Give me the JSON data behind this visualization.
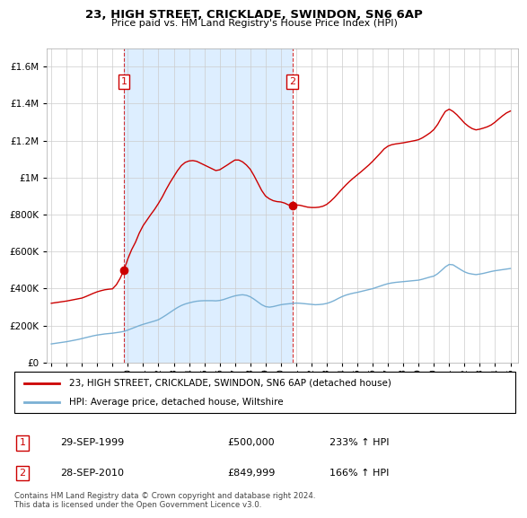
{
  "title": "23, HIGH STREET, CRICKLADE, SWINDON, SN6 6AP",
  "subtitle": "Price paid vs. HM Land Registry's House Price Index (HPI)",
  "footer": "Contains HM Land Registry data © Crown copyright and database right 2024.\nThis data is licensed under the Open Government Licence v3.0.",
  "legend_line1": "23, HIGH STREET, CRICKLADE, SWINDON, SN6 6AP (detached house)",
  "legend_line2": "HPI: Average price, detached house, Wiltshire",
  "sale1_label": "1",
  "sale1_date": "29-SEP-1999",
  "sale1_price": "£500,000",
  "sale1_hpi": "233% ↑ HPI",
  "sale2_label": "2",
  "sale2_date": "28-SEP-2010",
  "sale2_price": "£849,999",
  "sale2_hpi": "166% ↑ HPI",
  "red_color": "#cc0000",
  "blue_color": "#7ab0d4",
  "shade_color": "#ddeeff",
  "background_color": "#ffffff",
  "grid_color": "#cccccc",
  "ylim": [
    0,
    1700000
  ],
  "xlim_min": 1994.7,
  "xlim_max": 2025.5,
  "sale1_year": 1999.75,
  "sale1_value": 500000,
  "sale2_year": 2010.75,
  "sale2_value": 849999,
  "hpi_years": [
    1995,
    1995.25,
    1995.5,
    1995.75,
    1996,
    1996.25,
    1996.5,
    1996.75,
    1997,
    1997.25,
    1997.5,
    1997.75,
    1998,
    1998.25,
    1998.5,
    1998.75,
    1999,
    1999.25,
    1999.5,
    1999.75,
    2000,
    2000.25,
    2000.5,
    2000.75,
    2001,
    2001.25,
    2001.5,
    2001.75,
    2002,
    2002.25,
    2002.5,
    2002.75,
    2003,
    2003.25,
    2003.5,
    2003.75,
    2004,
    2004.25,
    2004.5,
    2004.75,
    2005,
    2005.25,
    2005.5,
    2005.75,
    2006,
    2006.25,
    2006.5,
    2006.75,
    2007,
    2007.25,
    2007.5,
    2007.75,
    2008,
    2008.25,
    2008.5,
    2008.75,
    2009,
    2009.25,
    2009.5,
    2009.75,
    2010,
    2010.25,
    2010.5,
    2010.75,
    2011,
    2011.25,
    2011.5,
    2011.75,
    2012,
    2012.25,
    2012.5,
    2012.75,
    2013,
    2013.25,
    2013.5,
    2013.75,
    2014,
    2014.25,
    2014.5,
    2014.75,
    2015,
    2015.25,
    2015.5,
    2015.75,
    2016,
    2016.25,
    2016.5,
    2016.75,
    2017,
    2017.25,
    2017.5,
    2017.75,
    2018,
    2018.25,
    2018.5,
    2018.75,
    2019,
    2019.25,
    2019.5,
    2019.75,
    2020,
    2020.25,
    2020.5,
    2020.75,
    2021,
    2021.25,
    2021.5,
    2021.75,
    2022,
    2022.25,
    2022.5,
    2022.75,
    2023,
    2023.25,
    2023.5,
    2023.75,
    2024,
    2024.25,
    2024.5,
    2024.75,
    2025
  ],
  "hpi_values": [
    100000,
    103000,
    106000,
    109000,
    112000,
    116000,
    120000,
    124000,
    129000,
    134000,
    139000,
    144000,
    148000,
    151000,
    154000,
    156000,
    158000,
    161000,
    164000,
    168000,
    175000,
    183000,
    191000,
    199000,
    206000,
    212000,
    218000,
    224000,
    231000,
    243000,
    256000,
    270000,
    284000,
    297000,
    308000,
    316000,
    322000,
    327000,
    331000,
    333000,
    334000,
    334000,
    334000,
    333000,
    335000,
    340000,
    347000,
    354000,
    360000,
    364000,
    366000,
    363000,
    355000,
    342000,
    327000,
    312000,
    302000,
    299000,
    302000,
    307000,
    312000,
    315000,
    317000,
    319000,
    321000,
    320000,
    318000,
    316000,
    314000,
    312000,
    313000,
    315000,
    319000,
    326000,
    335000,
    346000,
    356000,
    364000,
    370000,
    375000,
    379000,
    384000,
    389000,
    394000,
    399000,
    406000,
    413000,
    420000,
    426000,
    430000,
    433000,
    435000,
    437000,
    439000,
    441000,
    443000,
    445000,
    450000,
    456000,
    462000,
    467000,
    480000,
    498000,
    517000,
    530000,
    528000,
    515000,
    502000,
    490000,
    482000,
    478000,
    475000,
    478000,
    482000,
    487000,
    492000,
    496000,
    499000,
    502000,
    505000,
    508000
  ],
  "red_years": [
    1995,
    1995.25,
    1995.5,
    1995.75,
    1996,
    1996.25,
    1996.5,
    1996.75,
    1997,
    1997.25,
    1997.5,
    1997.75,
    1998,
    1998.25,
    1998.5,
    1998.75,
    1999,
    1999.25,
    1999.5,
    1999.75,
    2000,
    2000.25,
    2000.5,
    2000.75,
    2001,
    2001.25,
    2001.5,
    2001.75,
    2002,
    2002.25,
    2002.5,
    2002.75,
    2003,
    2003.25,
    2003.5,
    2003.75,
    2004,
    2004.25,
    2004.5,
    2004.75,
    2005,
    2005.25,
    2005.5,
    2005.75,
    2006,
    2006.25,
    2006.5,
    2006.75,
    2007,
    2007.25,
    2007.5,
    2007.75,
    2008,
    2008.25,
    2008.5,
    2008.75,
    2009,
    2009.25,
    2009.5,
    2009.75,
    2010,
    2010.25,
    2010.5,
    2010.75,
    2011,
    2011.25,
    2011.5,
    2011.75,
    2012,
    2012.25,
    2012.5,
    2012.75,
    2013,
    2013.25,
    2013.5,
    2013.75,
    2014,
    2014.25,
    2014.5,
    2014.75,
    2015,
    2015.25,
    2015.5,
    2015.75,
    2016,
    2016.25,
    2016.5,
    2016.75,
    2017,
    2017.25,
    2017.5,
    2017.75,
    2018,
    2018.25,
    2018.5,
    2018.75,
    2019,
    2019.25,
    2019.5,
    2019.75,
    2020,
    2020.25,
    2020.5,
    2020.75,
    2021,
    2021.25,
    2021.5,
    2021.75,
    2022,
    2022.25,
    2022.5,
    2022.75,
    2023,
    2023.25,
    2023.5,
    2023.75,
    2024,
    2024.25,
    2024.5,
    2024.75,
    2025
  ],
  "red_values": [
    320000,
    323000,
    326000,
    329000,
    332000,
    336000,
    340000,
    344000,
    348000,
    356000,
    365000,
    374000,
    382000,
    388000,
    393000,
    396000,
    398000,
    420000,
    455000,
    500000,
    560000,
    610000,
    650000,
    700000,
    740000,
    770000,
    800000,
    828000,
    860000,
    895000,
    935000,
    972000,
    1005000,
    1038000,
    1065000,
    1082000,
    1090000,
    1092000,
    1088000,
    1078000,
    1068000,
    1058000,
    1048000,
    1038000,
    1042000,
    1055000,
    1068000,
    1082000,
    1095000,
    1095000,
    1085000,
    1068000,
    1045000,
    1010000,
    970000,
    930000,
    900000,
    885000,
    875000,
    870000,
    868000,
    862000,
    852000,
    849999,
    852000,
    850000,
    845000,
    840000,
    838000,
    838000,
    840000,
    845000,
    855000,
    872000,
    892000,
    915000,
    938000,
    960000,
    980000,
    998000,
    1015000,
    1032000,
    1050000,
    1068000,
    1088000,
    1110000,
    1132000,
    1155000,
    1170000,
    1178000,
    1182000,
    1185000,
    1188000,
    1192000,
    1196000,
    1200000,
    1205000,
    1215000,
    1228000,
    1242000,
    1260000,
    1288000,
    1325000,
    1358000,
    1370000,
    1358000,
    1340000,
    1318000,
    1295000,
    1278000,
    1265000,
    1258000,
    1262000,
    1268000,
    1275000,
    1285000,
    1300000,
    1318000,
    1335000,
    1350000,
    1360000
  ]
}
